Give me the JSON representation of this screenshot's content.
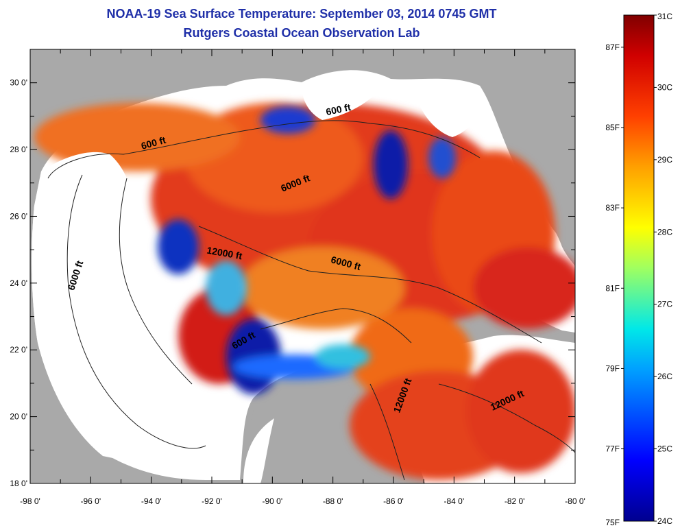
{
  "header": {
    "title": "NOAA-19 Sea Surface Temperature:  September 03, 2014 0745 GMT",
    "subtitle": "Rutgers Coastal Ocean Observation Lab"
  },
  "map": {
    "lon_range": [
      -98,
      -80
    ],
    "lat_range": [
      18,
      31
    ],
    "x_ticks": [
      "-98 0'",
      "-96 0'",
      "-94 0'",
      "-92 0'",
      "-90 0'",
      "-88 0'",
      "-86 0'",
      "-84 0'",
      "-82 0'",
      "-80 0'"
    ],
    "y_ticks": [
      "30 0'",
      "28 0'",
      "26 0'",
      "24 0'",
      "22 0'",
      "20 0'",
      "18 0'"
    ],
    "colors": {
      "land": "#a9a9a9",
      "cloud": "#ffffff",
      "warm": "#d8281c",
      "cold": "#0a1aa8"
    },
    "contour_labels": [
      {
        "text": "600 ft",
        "lon": -93.9,
        "lat": 28.1,
        "rot": -15
      },
      {
        "text": "600 ft",
        "lon": -87.8,
        "lat": 29.1,
        "rot": -12
      },
      {
        "text": "6000 ft",
        "lon": -89.2,
        "lat": 26.9,
        "rot": -22
      },
      {
        "text": "6000 ft",
        "lon": -96.4,
        "lat": 24.2,
        "rot": -72
      },
      {
        "text": "12000 ft",
        "lon": -91.6,
        "lat": 24.8,
        "rot": 10
      },
      {
        "text": "6000 ft",
        "lon": -87.6,
        "lat": 24.5,
        "rot": 15
      },
      {
        "text": "600 ft",
        "lon": -90.9,
        "lat": 22.2,
        "rot": -30
      },
      {
        "text": "12000 ft",
        "lon": -85.6,
        "lat": 20.6,
        "rot": -70
      },
      {
        "text": "12000 ft",
        "lon": -82.2,
        "lat": 20.4,
        "rot": -25
      }
    ]
  },
  "colorbar": {
    "min_c": 24,
    "max_c": 31,
    "celsius_labels": [
      "31C",
      "30C",
      "29C",
      "28C",
      "27C",
      "26C",
      "25C",
      "24C"
    ],
    "fahrenheit_labels": [
      "87F",
      "85F",
      "83F",
      "81F",
      "79F",
      "77F",
      "75F"
    ]
  }
}
